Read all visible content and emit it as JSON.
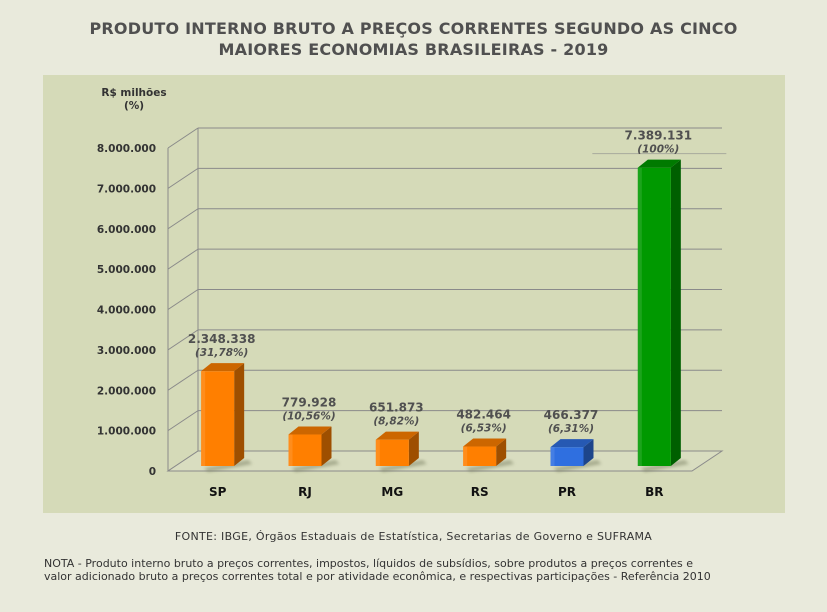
{
  "title_line1": "PRODUTO INTERNO BRUTO A PREÇOS CORRENTES SEGUNDO AS CINCO",
  "title_line2": "MAIORES ECONOMIAS BRASILEIRAS - 2019",
  "source": "FONTE: IBGE, Órgãos Estaduais de Estatística, Secretarias de Governo e SUFRAMA",
  "note_line1": "NOTA - Produto interno bruto a preços correntes, impostos, líquidos de subsídios, sobre produtos a preços correntes e",
  "note_line2": "valor adicionado bruto a preços correntes total e por atividade econômica, e respectivas participações - Referência 2010",
  "colors": {
    "background": "#e9eadc",
    "plot_bg": "#d5dab8",
    "states": "#ff7f00",
    "PR": "#2f6fe0",
    "BR": "#009900"
  },
  "chart_data": {
    "type": "bar",
    "ylabel_line1": "R$ milhões",
    "ylabel_line2": "(%)",
    "ylim": [
      0,
      8000000
    ],
    "yticks": [
      0,
      1000000,
      2000000,
      3000000,
      4000000,
      5000000,
      6000000,
      7000000,
      8000000
    ],
    "ytick_labels": [
      "0",
      "1.000.000",
      "2.000.000",
      "3.000.000",
      "4.000.000",
      "5.000.000",
      "6.000.000",
      "7.000.000",
      "8.000.000"
    ],
    "grid": true,
    "categories": [
      "SP",
      "RJ",
      "MG",
      "RS",
      "PR",
      "BR"
    ],
    "values": [
      2348338,
      779928,
      651873,
      482464,
      466377,
      7389131
    ],
    "value_labels": [
      "2.348.338",
      "779.928",
      "651.873",
      "482.464",
      "466.377",
      "7.389.131"
    ],
    "percent_labels": [
      "(31,78%)",
      "(10,56%)",
      "(8,82%)",
      "(6,53%)",
      "(6,31%)",
      "(100%)"
    ],
    "bar_colors": [
      "#ff7f00",
      "#ff7f00",
      "#ff7f00",
      "#ff7f00",
      "#2f6fe0",
      "#009900"
    ]
  }
}
